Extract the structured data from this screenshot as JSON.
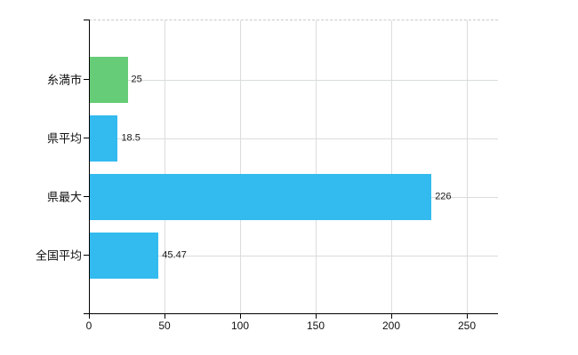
{
  "chart_data": {
    "type": "bar",
    "orientation": "horizontal",
    "title": "",
    "xlabel": "",
    "ylabel": "",
    "categories": [
      "糸満市",
      "県平均",
      "県最大",
      "全国平均"
    ],
    "values": [
      25,
      18.5,
      226,
      45.47
    ],
    "value_labels": [
      "25",
      "18.5",
      "226",
      "45.47"
    ],
    "bar_colors": [
      "#66cc77",
      "#33baef",
      "#33baef",
      "#33baef"
    ],
    "x_ticks": [
      0,
      50,
      100,
      150,
      200,
      250
    ],
    "x_tick_labels": [
      "0",
      "50",
      "100",
      "150",
      "200",
      "250"
    ],
    "xlim": [
      0,
      270
    ],
    "grid": true,
    "legend": false
  },
  "colors": {
    "axis": "#000000",
    "vertical_gridline": "#dcdcdc",
    "horizontal_gridline": "#d8ddd8",
    "top_border": "#c9c9c9",
    "text": "#111111",
    "background": "#ffffff"
  }
}
